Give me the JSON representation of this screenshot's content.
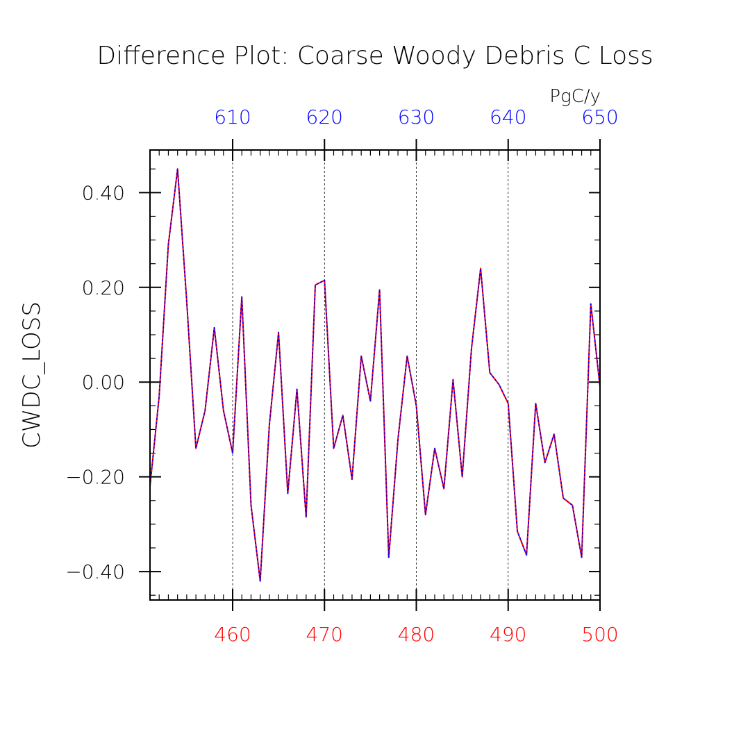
{
  "chart_data": {
    "type": "line",
    "title": "Difference Plot: Coarse Woody Debris C Loss",
    "units": "PgC/y",
    "ylabel": "CWDC_LOSS",
    "ylim": [
      -0.46,
      0.49
    ],
    "yticks": [
      -0.4,
      -0.2,
      0.0,
      0.2,
      0.4
    ],
    "ytick_labels": [
      "−0.40",
      "−0.20",
      "0.00",
      "0.20",
      "0.40"
    ],
    "bottom_axis": {
      "range": [
        451,
        500
      ],
      "ticks": [
        460,
        470,
        480,
        490,
        500
      ],
      "color": "#ff0000"
    },
    "top_axis": {
      "range": [
        601,
        650
      ],
      "ticks": [
        610,
        620,
        630,
        640,
        650
      ],
      "color": "#0000ff"
    },
    "grid": "vertical dashed at major x ticks",
    "x": [
      451,
      452,
      453,
      454,
      455,
      456,
      457,
      458,
      459,
      460,
      461,
      462,
      463,
      464,
      465,
      466,
      467,
      468,
      469,
      470,
      471,
      472,
      473,
      474,
      475,
      476,
      477,
      478,
      479,
      480,
      481,
      482,
      483,
      484,
      485,
      486,
      487,
      488,
      489,
      490,
      491,
      492,
      493,
      494,
      495,
      496,
      497,
      498,
      499,
      500
    ],
    "series": [
      {
        "color": "#ff0000",
        "style": "solid",
        "values": [
          -0.22,
          -0.03,
          0.29,
          0.45,
          0.17,
          -0.14,
          -0.06,
          0.115,
          -0.06,
          -0.15,
          0.18,
          -0.26,
          -0.42,
          -0.09,
          0.105,
          -0.235,
          -0.015,
          -0.285,
          0.205,
          0.215,
          -0.14,
          -0.07,
          -0.205,
          0.055,
          -0.04,
          0.195,
          -0.37,
          -0.12,
          0.055,
          -0.05,
          -0.28,
          -0.14,
          -0.225,
          0.005,
          -0.2,
          0.07,
          0.24,
          0.02,
          -0.005,
          -0.045,
          -0.315,
          -0.365,
          -0.045,
          -0.17,
          -0.11,
          -0.245,
          -0.26,
          -0.37,
          0.165,
          -0.01
        ]
      },
      {
        "color": "#0000ff",
        "style": "dashed",
        "values": [
          -0.22,
          -0.03,
          0.29,
          0.45,
          0.17,
          -0.14,
          -0.06,
          0.115,
          -0.06,
          -0.15,
          0.18,
          -0.26,
          -0.42,
          -0.09,
          0.105,
          -0.235,
          -0.015,
          -0.285,
          0.205,
          0.215,
          -0.14,
          -0.07,
          -0.205,
          0.055,
          -0.04,
          0.195,
          -0.37,
          -0.12,
          0.055,
          -0.05,
          -0.28,
          -0.14,
          -0.225,
          0.005,
          -0.2,
          0.07,
          0.24,
          0.02,
          -0.005,
          -0.045,
          -0.315,
          -0.365,
          -0.045,
          -0.17,
          -0.11,
          -0.245,
          -0.26,
          -0.37,
          0.165,
          -0.01
        ]
      }
    ]
  }
}
